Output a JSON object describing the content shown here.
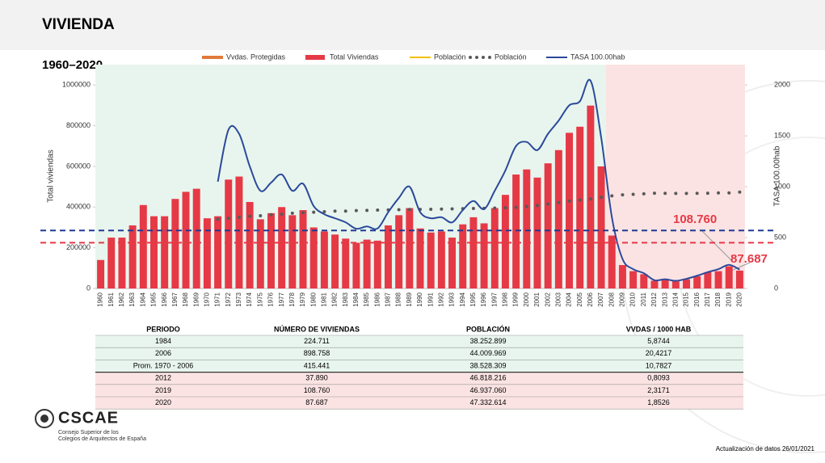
{
  "header": {
    "title": "VIVIENDA"
  },
  "chart_data": {
    "type": "bar",
    "subtitle": "1960–2020",
    "y_label": "Total viviendas",
    "y2_label": "TASA 100.00hab",
    "categories": [
      "1960",
      "1961",
      "1962",
      "1963",
      "1964",
      "1965",
      "1966",
      "1967",
      "1968",
      "1969",
      "1970",
      "1971",
      "1972",
      "1973",
      "1974",
      "1975",
      "1976",
      "1977",
      "1978",
      "1979",
      "1980",
      "1981",
      "1982",
      "1983",
      "1984",
      "1985",
      "1986",
      "1987",
      "1988",
      "1989",
      "1990",
      "1991",
      "1992",
      "1993",
      "1994",
      "1995",
      "1996",
      "1997",
      "1998",
      "1999",
      "2000",
      "2001",
      "2002",
      "2003",
      "2004",
      "2005",
      "2006",
      "2007",
      "2008",
      "2009",
      "2010",
      "2011",
      "2012",
      "2013",
      "2014",
      "2015",
      "2016",
      "2017",
      "2018",
      "2019",
      "2020"
    ],
    "series": [
      {
        "name": "Vvdas. Protegidas",
        "color": "#e07b39",
        "style": "line",
        "values": [
          null,
          null,
          null,
          null,
          null,
          null,
          null,
          null,
          null,
          null,
          null,
          null,
          null,
          null,
          null,
          null,
          null,
          null,
          null,
          null,
          null,
          null,
          null,
          null,
          null,
          null,
          null,
          null,
          null,
          null,
          null,
          null,
          null,
          null,
          null,
          null,
          null,
          null,
          null,
          null,
          null,
          null,
          null,
          null,
          null,
          null,
          null,
          null,
          null,
          null,
          null,
          null,
          null,
          null,
          null,
          null,
          null,
          null,
          null,
          null,
          null
        ]
      },
      {
        "name": "Total Viviendas",
        "color": "#e63946",
        "style": "bar",
        "values": [
          140000,
          250000,
          250000,
          310000,
          410000,
          355000,
          355000,
          440000,
          475000,
          490000,
          345000,
          355000,
          535000,
          550000,
          425000,
          340000,
          370000,
          400000,
          360000,
          385000,
          300000,
          280000,
          265000,
          245000,
          224711,
          240000,
          235000,
          310000,
          360000,
          395000,
          295000,
          275000,
          280000,
          250000,
          315000,
          350000,
          320000,
          395000,
          460000,
          560000,
          585000,
          545000,
          615000,
          680000,
          765000,
          795000,
          898758,
          600000,
          260000,
          115000,
          85000,
          70000,
          37890,
          45000,
          35000,
          45000,
          60000,
          80000,
          85000,
          108760,
          87687
        ]
      },
      {
        "name": "Población",
        "color": "#f2c200",
        "style": "line",
        "axis": "y2",
        "values": [
          null,
          null,
          null,
          null,
          null,
          null,
          null,
          null,
          null,
          null,
          null,
          null,
          null,
          null,
          null,
          null,
          null,
          null,
          null,
          null,
          null,
          null,
          null,
          null,
          null,
          null,
          null,
          null,
          null,
          null,
          null,
          null,
          null,
          null,
          null,
          null,
          null,
          null,
          null,
          null,
          null,
          null,
          null,
          null,
          null,
          null,
          null,
          null,
          null,
          null,
          null,
          null,
          null,
          null,
          null,
          null,
          null,
          null,
          null,
          null,
          null
        ]
      },
      {
        "name": "Población",
        "color": "#595959",
        "style": "dotted",
        "axis": "y2",
        "values": [
          null,
          null,
          null,
          null,
          null,
          null,
          null,
          null,
          null,
          null,
          null,
          680,
          690,
          700,
          710,
          715,
          725,
          730,
          740,
          745,
          750,
          755,
          760,
          760,
          765,
          767,
          770,
          772,
          774,
          776,
          777,
          778,
          780,
          782,
          784,
          786,
          788,
          790,
          793,
          797,
          805,
          815,
          830,
          845,
          860,
          870,
          880,
          895,
          910,
          920,
          925,
          930,
          936,
          935,
          934,
          934,
          935,
          936,
          939,
          939,
          947
        ]
      },
      {
        "name": "TASA 100.00hab",
        "color": "#2b4a9b",
        "style": "line",
        "axis": "y2",
        "values": [
          null,
          null,
          null,
          null,
          null,
          null,
          null,
          null,
          null,
          null,
          null,
          1050,
          1560,
          1520,
          1200,
          960,
          1040,
          1120,
          960,
          1030,
          810,
          730,
          690,
          650,
          587,
          610,
          590,
          750,
          890,
          1000,
          750,
          690,
          700,
          650,
          770,
          860,
          780,
          960,
          1160,
          1400,
          1440,
          1360,
          1520,
          1650,
          1800,
          1840,
          2042,
          1480,
          700,
          290,
          190,
          150,
          81,
          90,
          75,
          95,
          125,
          160,
          190,
          232,
          185
        ]
      }
    ],
    "ylim": [
      0,
      1100000
    ],
    "yticks": [
      0,
      200000,
      400000,
      600000,
      800000,
      1000000
    ],
    "y2lim": [
      0,
      2200
    ],
    "y2ticks": [
      0,
      500,
      1000,
      1500,
      2000
    ],
    "reference_lines": [
      {
        "value": 285000,
        "color": "#1f3a93"
      },
      {
        "value": 224711,
        "color": "#e63946"
      }
    ],
    "annotations": [
      "108.760",
      "87.687"
    ]
  },
  "table": {
    "header": [
      "PERIODO",
      "NÚMERO DE VIVIENDAS",
      "POBLACIÓN",
      "VVDAS / 1000 HAB"
    ],
    "rows": [
      [
        "1984",
        "224.711",
        "38.252.899",
        "5,8744"
      ],
      [
        "2006",
        "898.758",
        "44.009.969",
        "20,4217"
      ],
      [
        "Prom. 1970 - 2006",
        "415.441",
        "38.528.309",
        "10,7827"
      ],
      [
        "2012",
        "37.890",
        "46.818.216",
        "0,8093"
      ],
      [
        "2019",
        "108.760",
        "46.937.060",
        "2,3171"
      ],
      [
        "2020",
        "87.687",
        "47.332.614",
        "1,8526"
      ]
    ]
  },
  "footer": {
    "logo": "CSCAE",
    "org_line1": "Consejo Superior de los",
    "org_line2": "Colegios de Arquitectos de España",
    "update": "Actualización de datos 26/01/2021"
  }
}
